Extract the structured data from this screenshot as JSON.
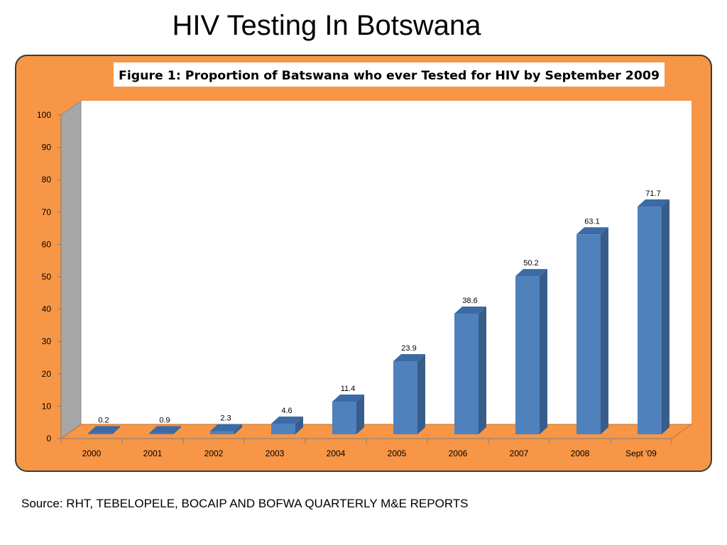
{
  "slide": {
    "title": "HIV Testing In Botswana",
    "source": "Source: RHT, TEBELOPELE, BOCAIP AND BOFWA QUARTERLY M&E REPORTS"
  },
  "colors": {
    "frame": "#F79646",
    "bar_front": "#4F81BD",
    "bar_side": "#385D8A",
    "bar_top": "#3B6AA6",
    "back_wall": "#FFFFFF",
    "side_wall": "#A6A6A6",
    "floor": "#F79646"
  },
  "chart_data": {
    "type": "bar",
    "title": "Figure 1: Proportion of Batswana who ever Tested for HIV by September 2009",
    "xlabel": "",
    "ylabel": "",
    "ylim": [
      0,
      100
    ],
    "yticks": [
      "0",
      "10",
      "20",
      "30",
      "40",
      "50",
      "60",
      "70",
      "80",
      "90",
      "100"
    ],
    "categories": [
      "2000",
      "2001",
      "2002",
      "2003",
      "2004",
      "2005",
      "2006",
      "2007",
      "2008",
      "Sept '09"
    ],
    "values": [
      0.2,
      0.9,
      2.3,
      4.6,
      11.4,
      23.9,
      38.6,
      50.2,
      63.1,
      71.7
    ],
    "value_labels": [
      "0.2",
      "0.9",
      "2.3",
      "4.6",
      "11.4",
      "23.9",
      "38.6",
      "50.2",
      "63.1",
      "71.7"
    ],
    "grid": false,
    "legend": "none"
  }
}
